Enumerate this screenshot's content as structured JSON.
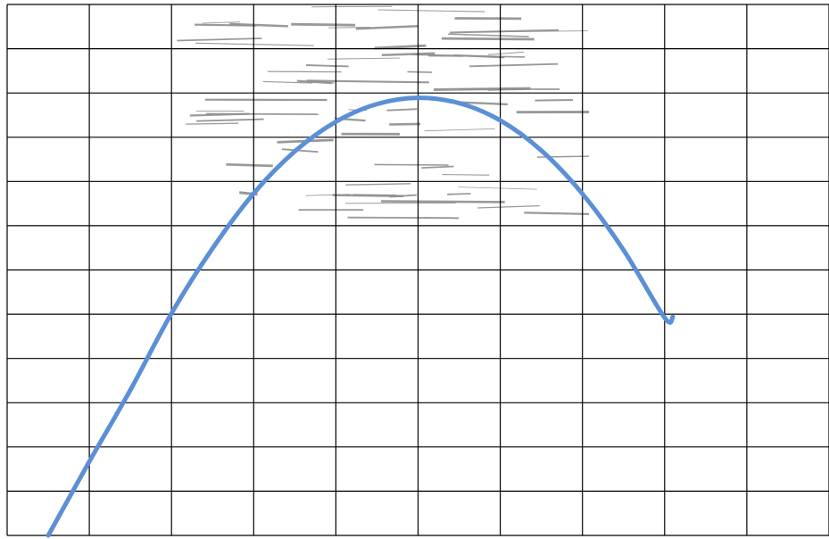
{
  "chart_data": {
    "type": "line",
    "title": "",
    "xlabel": "",
    "ylabel": "",
    "grid": true,
    "x": [
      0.5,
      1,
      1.5,
      2,
      2.5,
      3,
      3.5,
      4,
      4.5,
      5,
      5.5,
      6,
      6.5,
      7,
      7.5,
      8,
      8.1
    ],
    "series": [
      {
        "values": [
          0,
          1.67,
          3.29,
          5.02,
          6.49,
          7.73,
          8.68,
          9.35,
          9.75,
          9.89,
          9.77,
          9.38,
          8.7,
          7.72,
          6.45,
          4.92,
          4.94
        ]
      }
    ],
    "xlim": [
      0,
      10
    ],
    "ylim": [
      0,
      12
    ],
    "colors": {
      "line": "#5b8fd6",
      "grid": "#000000",
      "background": "#ffffff",
      "artifact": "#8f8f8f"
    }
  }
}
